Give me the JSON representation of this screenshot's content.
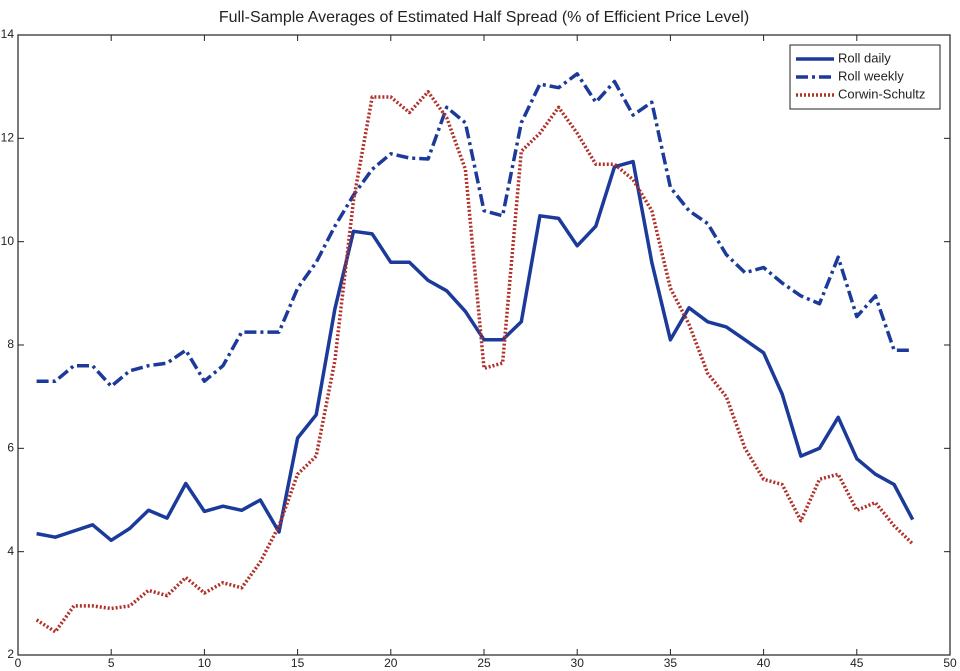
{
  "chart_data": {
    "type": "line",
    "title": "Full-Sample Averages of Estimated Half Spread (% of Efficient Price Level)",
    "x": [
      1,
      2,
      3,
      4,
      5,
      6,
      7,
      8,
      9,
      10,
      11,
      12,
      13,
      14,
      15,
      16,
      17,
      18,
      19,
      20,
      21,
      22,
      23,
      24,
      25,
      26,
      27,
      28,
      29,
      30,
      31,
      32,
      33,
      34,
      35,
      36,
      37,
      38,
      39,
      40,
      41,
      42,
      43,
      44,
      45,
      46,
      47,
      48
    ],
    "series": [
      {
        "name": "Roll daily",
        "color": "#1b3a9a",
        "dash": "solid",
        "values": [
          4.35,
          4.28,
          4.4,
          4.52,
          4.22,
          4.45,
          4.8,
          4.65,
          5.32,
          4.78,
          4.88,
          4.8,
          5.0,
          4.38,
          6.2,
          6.65,
          8.7,
          10.2,
          10.15,
          9.6,
          9.6,
          9.25,
          9.05,
          8.65,
          8.1,
          8.1,
          8.45,
          10.5,
          10.45,
          9.92,
          10.3,
          11.45,
          11.55,
          9.6,
          8.1,
          8.72,
          8.45,
          8.35,
          8.1,
          7.85,
          7.05,
          5.85,
          6.0,
          6.6,
          5.8,
          5.5,
          5.3,
          4.62
        ]
      },
      {
        "name": "Roll weekly",
        "color": "#1b3a9a",
        "dash": "dashdot",
        "values": [
          7.3,
          7.3,
          7.6,
          7.6,
          7.2,
          7.5,
          7.6,
          7.65,
          7.9,
          7.3,
          7.6,
          8.25,
          8.25,
          8.25,
          9.1,
          9.6,
          10.3,
          10.9,
          11.4,
          11.7,
          11.62,
          11.6,
          12.6,
          12.3,
          10.6,
          10.5,
          12.3,
          13.05,
          12.98,
          13.25,
          12.7,
          13.1,
          12.45,
          12.7,
          11.05,
          10.6,
          10.35,
          9.75,
          9.4,
          9.5,
          9.2,
          8.95,
          8.8,
          9.7,
          8.55,
          8.95,
          7.9,
          7.9
        ]
      },
      {
        "name": "Corwin-Schultz",
        "color": "#b0302a",
        "dash": "dotted",
        "values": [
          2.68,
          2.45,
          2.95,
          2.95,
          2.9,
          2.95,
          3.25,
          3.15,
          3.5,
          3.2,
          3.4,
          3.3,
          3.8,
          4.5,
          5.5,
          5.85,
          7.7,
          10.8,
          12.8,
          12.8,
          12.5,
          12.9,
          12.4,
          11.4,
          7.55,
          7.65,
          11.75,
          12.1,
          12.6,
          12.1,
          11.5,
          11.5,
          11.2,
          10.6,
          9.1,
          8.4,
          7.45,
          7.0,
          6.0,
          5.4,
          5.3,
          4.6,
          5.4,
          5.5,
          4.8,
          4.95,
          4.5,
          4.15
        ]
      }
    ],
    "xlim": [
      0,
      50
    ],
    "xticks": [
      0,
      5,
      10,
      15,
      20,
      25,
      30,
      35,
      40,
      45,
      50
    ],
    "ylim": [
      2,
      14
    ],
    "yticks": [
      2,
      4,
      6,
      8,
      10,
      12,
      14
    ],
    "grid": false,
    "legend": "upper right"
  }
}
